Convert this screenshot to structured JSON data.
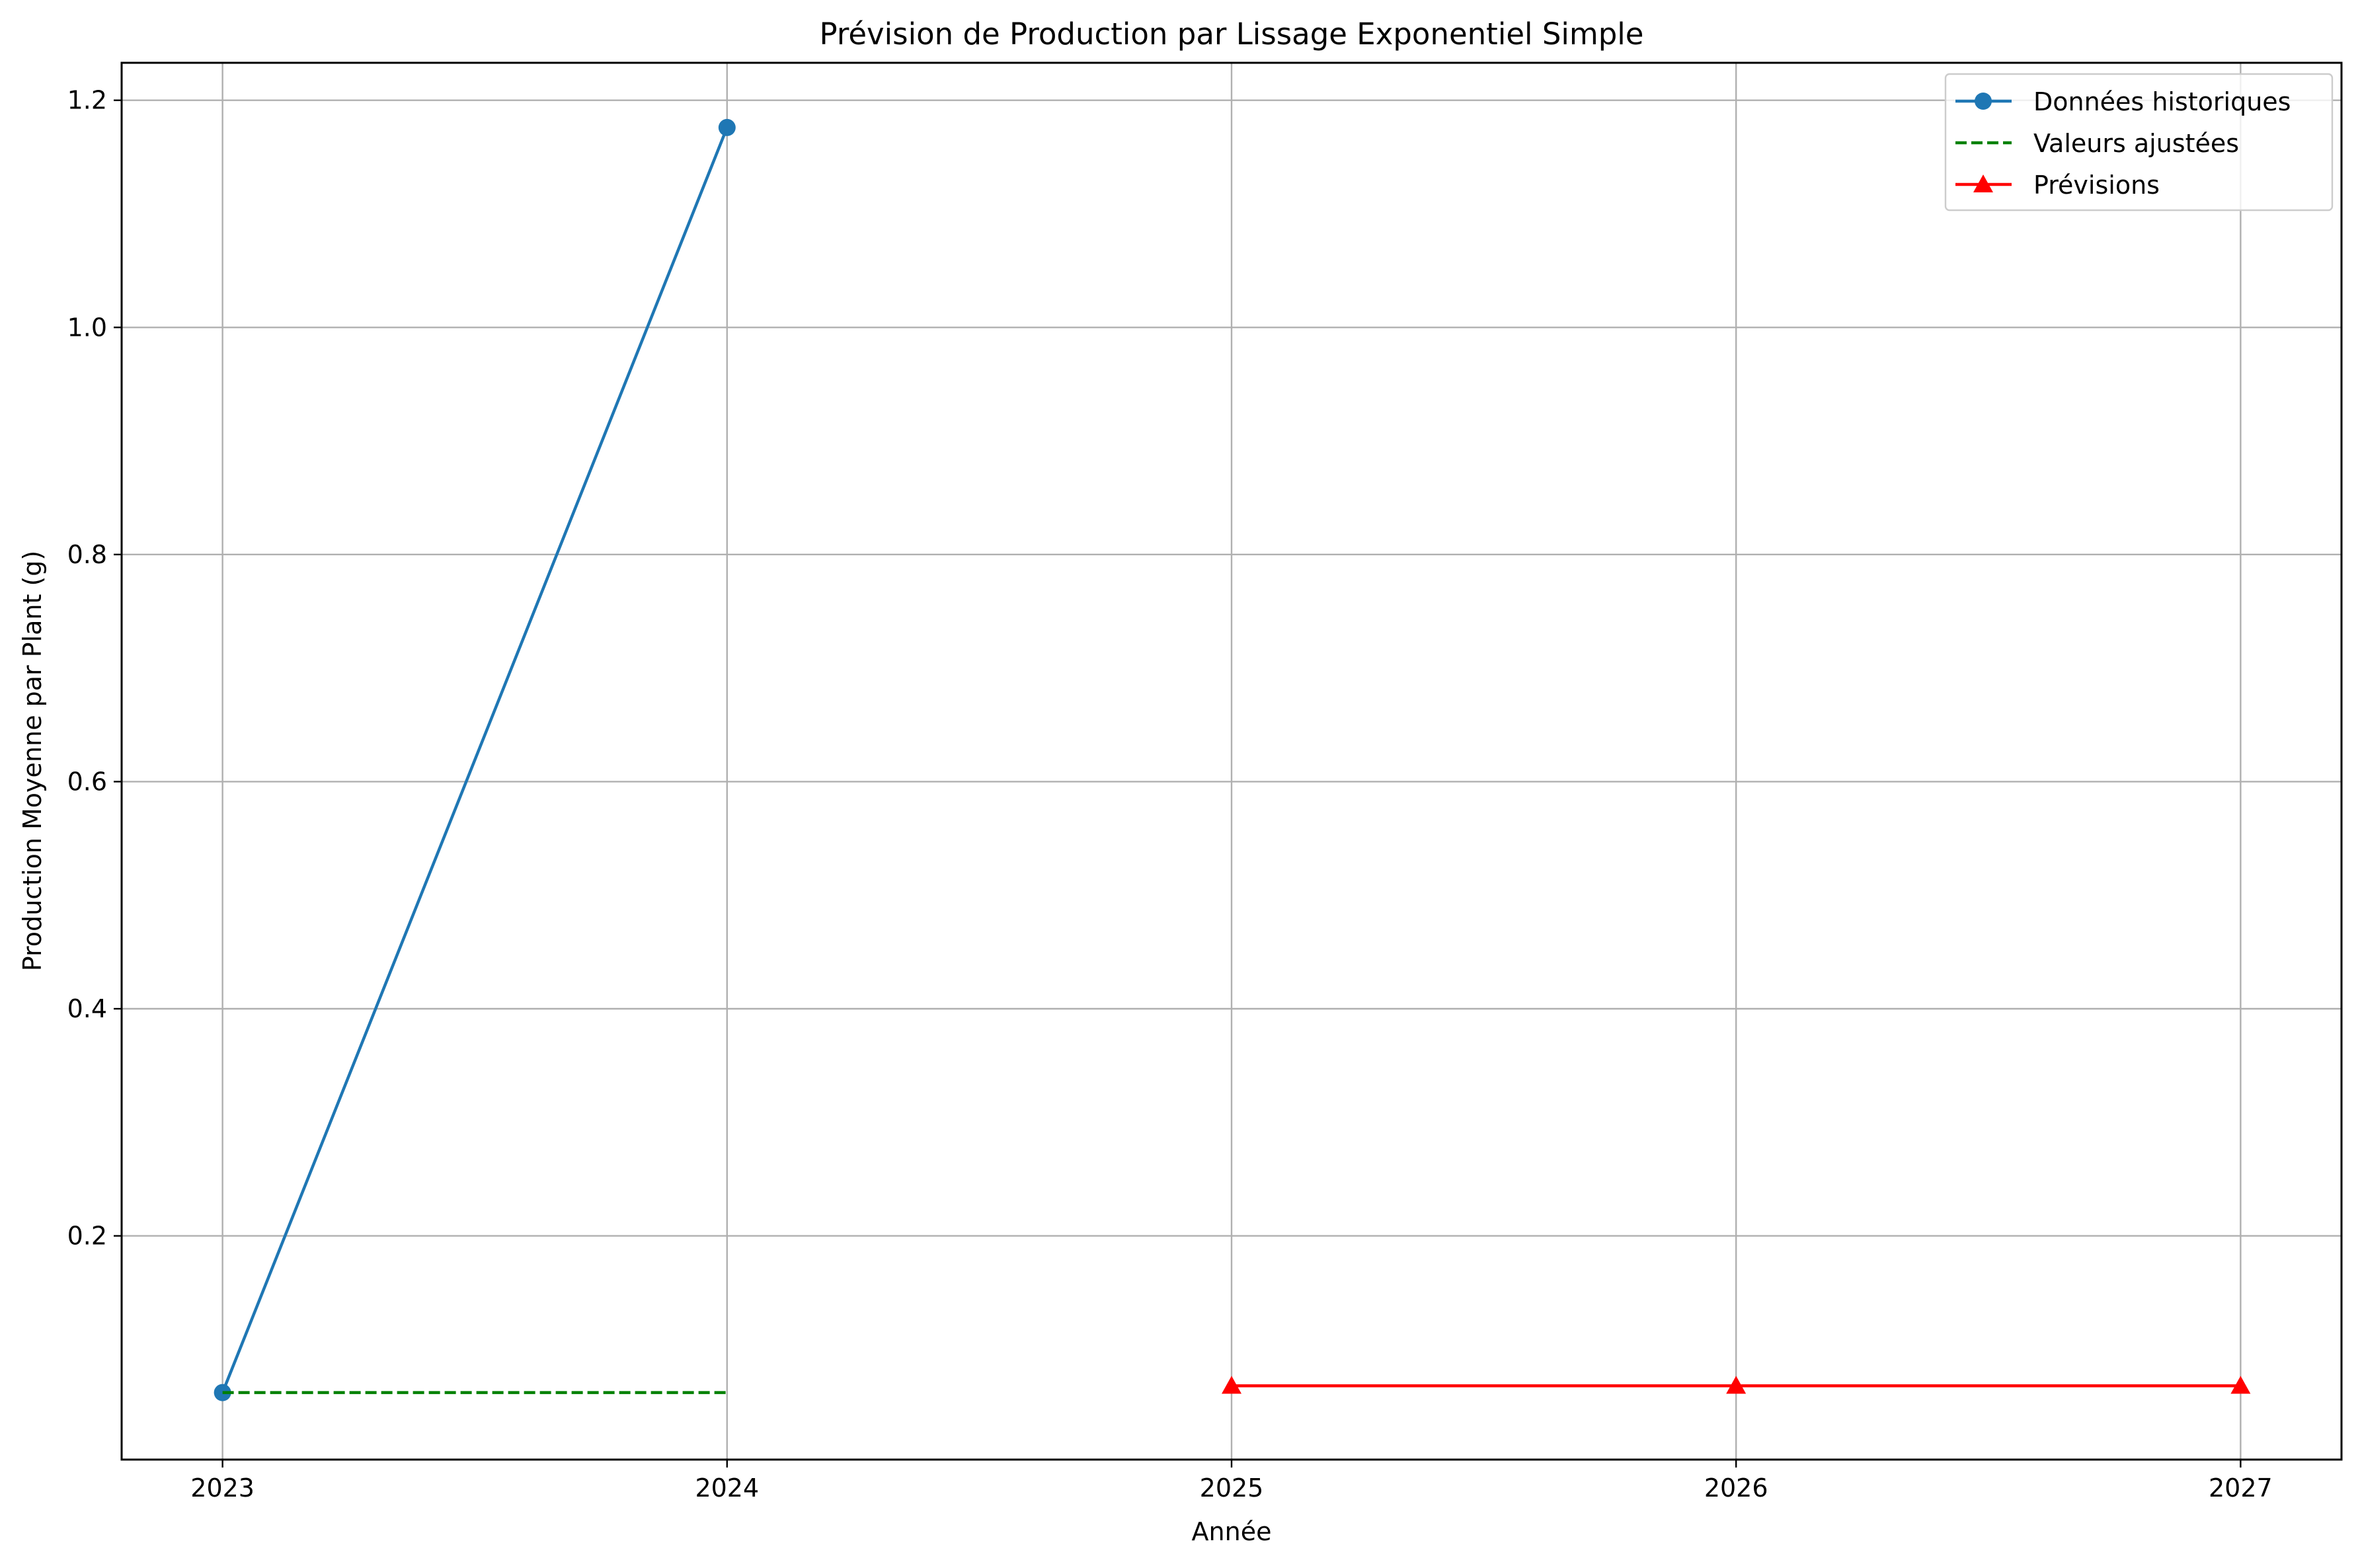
{
  "chart_data": {
    "type": "line",
    "title": "Prévision de Production par Lissage Exponentiel Simple",
    "xlabel": "Année",
    "ylabel": "Production Moyenne par Plant (g)",
    "xlim": [
      2022.8,
      2027.2
    ],
    "ylim": [
      0.003,
      1.233
    ],
    "x_ticks": [
      2023,
      2024,
      2025,
      2026,
      2027
    ],
    "y_ticks": [
      0.2,
      0.4,
      0.6,
      0.8,
      1.0,
      1.2
    ],
    "y_tick_labels": [
      "0.2",
      "0.4",
      "0.6",
      "0.8",
      "1.0",
      "1.2"
    ],
    "grid": true,
    "legend_position": "top-right",
    "series": [
      {
        "name": "Données historiques",
        "color": "#1f77b4",
        "line_style": "solid",
        "marker": "circle",
        "x": [
          2023,
          2024
        ],
        "y": [
          0.062,
          1.176
        ]
      },
      {
        "name": "Valeurs ajustées",
        "color": "#008000",
        "line_style": "dashed",
        "marker": "none",
        "x": [
          2023,
          2024
        ],
        "y": [
          0.062,
          0.062
        ]
      },
      {
        "name": "Prévisions",
        "color": "#ff0000",
        "line_style": "solid",
        "marker": "triangle",
        "x": [
          2025,
          2026,
          2027
        ],
        "y": [
          0.068,
          0.068,
          0.068
        ]
      }
    ]
  }
}
